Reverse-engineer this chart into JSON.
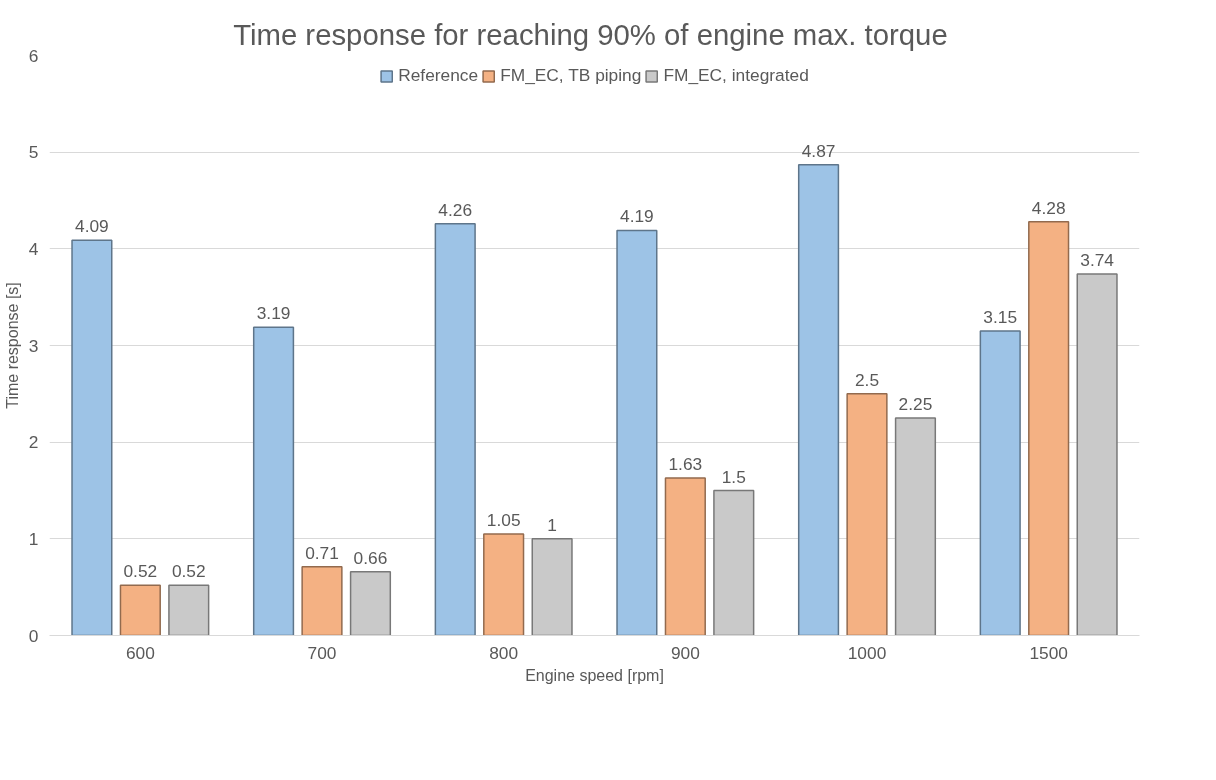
{
  "chart_data": {
    "type": "bar",
    "title": "Time response  for reaching 90% of engine max. torque",
    "xlabel": "Engine speed [rpm]",
    "ylabel": "Time response [s]",
    "categories": [
      "600",
      "700",
      "800",
      "900",
      "1000",
      "1500"
    ],
    "series": [
      {
        "name": "Reference",
        "color": "#9dc3e6",
        "values": [
          4.09,
          3.19,
          4.26,
          4.19,
          4.87,
          3.15
        ]
      },
      {
        "name": "FM_EC, TB piping",
        "color": "#f4b183",
        "values": [
          0.52,
          0.71,
          1.05,
          1.63,
          2.5,
          4.28
        ]
      },
      {
        "name": "FM_EC, integrated",
        "color": "#c9c9c9",
        "values": [
          0.52,
          0.66,
          1,
          1.5,
          2.25,
          3.74
        ]
      }
    ],
    "ylim": [
      0,
      6
    ],
    "yticks": [
      0,
      1,
      2,
      3,
      4,
      5,
      6
    ],
    "grid": "y",
    "legend": "top",
    "data_labels": true
  }
}
